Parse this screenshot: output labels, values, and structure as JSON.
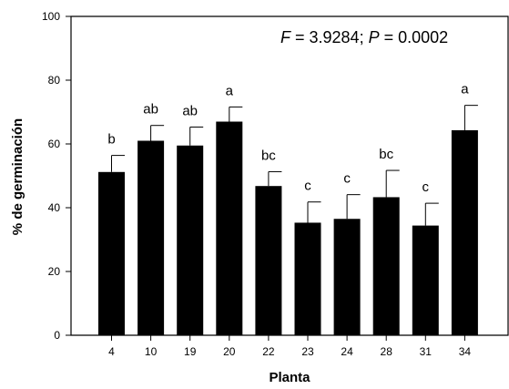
{
  "chart_data": {
    "type": "bar",
    "categories": [
      "4",
      "10",
      "19",
      "20",
      "22",
      "23",
      "24",
      "28",
      "31",
      "34"
    ],
    "values": [
      51.2,
      61,
      59.5,
      67,
      46.8,
      35.3,
      36.5,
      43.3,
      34.4,
      64.3
    ],
    "errors": [
      5.2,
      4.8,
      5.8,
      4.6,
      4.5,
      6.5,
      7.6,
      8.4,
      7,
      7.8
    ],
    "significance": [
      "b",
      "ab",
      "ab",
      "a",
      "bc",
      "c",
      "c",
      "bc",
      "c",
      "a"
    ],
    "xlabel": "Planta",
    "ylabel": "% de germinación",
    "ylim": [
      0,
      100
    ],
    "yticks": [
      0,
      20,
      40,
      60,
      80,
      100
    ],
    "annotation": {
      "f_label": "F",
      "f_value": " = 3.9284; ",
      "p_label": "P",
      "p_value": " = 0.0002"
    },
    "grid": false,
    "legend": "none",
    "bar_color": "#000000"
  }
}
